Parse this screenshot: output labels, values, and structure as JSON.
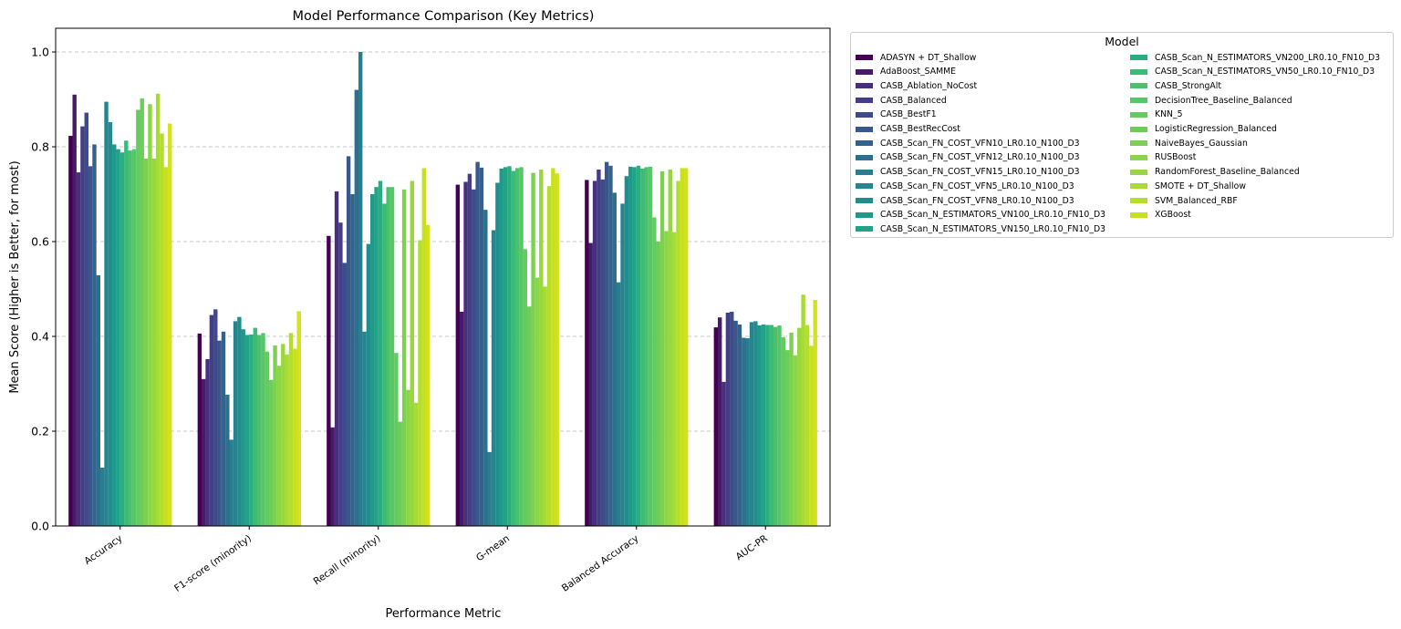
{
  "chart_data": {
    "type": "bar",
    "title": "Model Performance Comparison (Key Metrics)",
    "xlabel": "Performance Metric",
    "ylabel": "Mean Score (Higher is Better, for most)",
    "ylim": [
      0,
      1.05
    ],
    "yticks": [
      "0.0",
      "0.2",
      "0.4",
      "0.6",
      "0.8",
      "1.0"
    ],
    "grid": "y-dashed",
    "legend_title": "Model",
    "legend_placement": "outside-right",
    "categories": [
      "Accuracy",
      "F1-score (minority)",
      "Recall (minority)",
      "G-mean",
      "Balanced Accuracy",
      "AUC-PR"
    ],
    "series": [
      {
        "name": "ADASYN + DT_Shallow",
        "color": "#440154",
        "values": [
          0.823,
          0.406,
          0.612,
          0.72,
          0.73,
          0.419
        ]
      },
      {
        "name": "AdaBoost_SAMME",
        "color": "#461b67",
        "values": [
          0.91,
          0.31,
          0.208,
          0.452,
          0.597,
          0.44
        ]
      },
      {
        "name": "CASB_Ablation_NoCost",
        "color": "#472f7d",
        "values": [
          0.746,
          0.352,
          0.706,
          0.726,
          0.728,
          0.304
        ]
      },
      {
        "name": "CASB_Balanced",
        "color": "#433e85",
        "values": [
          0.843,
          0.445,
          0.64,
          0.743,
          0.752,
          0.45
        ]
      },
      {
        "name": "CASB_BestF1",
        "color": "#3e4a89",
        "values": [
          0.872,
          0.457,
          0.555,
          0.71,
          0.731,
          0.452
        ]
      },
      {
        "name": "CASB_BestRecCost",
        "color": "#38588c",
        "values": [
          0.759,
          0.391,
          0.78,
          0.768,
          0.768,
          0.433
        ]
      },
      {
        "name": "CASB_Scan_FN_COST_VFN10_LR0.10_N100_D3",
        "color": "#33638d",
        "values": [
          0.805,
          0.41,
          0.7,
          0.756,
          0.76,
          0.425
        ]
      },
      {
        "name": "CASB_Scan_FN_COST_VFN12_LR0.10_N100_D3",
        "color": "#2d708e",
        "values": [
          0.529,
          0.277,
          0.92,
          0.667,
          0.703,
          0.397
        ]
      },
      {
        "name": "CASB_Scan_FN_COST_VFN15_LR0.10_N100_D3",
        "color": "#287d8e",
        "values": [
          0.123,
          0.182,
          1.0,
          0.156,
          0.514,
          0.396
        ]
      },
      {
        "name": "CASB_Scan_FN_COST_VFN5_LR0.10_N100_D3",
        "color": "#25858e",
        "values": [
          0.895,
          0.432,
          0.41,
          0.624,
          0.68,
          0.43
        ]
      },
      {
        "name": "CASB_Scan_FN_COST_VFN8_LR0.10_N100_D3",
        "color": "#228d8d",
        "values": [
          0.852,
          0.441,
          0.595,
          0.724,
          0.738,
          0.432
        ]
      },
      {
        "name": "CASB_Scan_N_ESTIMATORS_VN100_LR0.10_FN10_D3",
        "color": "#1f998a",
        "values": [
          0.805,
          0.415,
          0.7,
          0.754,
          0.758,
          0.423
        ]
      },
      {
        "name": "CASB_Scan_N_ESTIMATORS_VN150_LR0.10_FN10_D3",
        "color": "#20a386",
        "values": [
          0.795,
          0.403,
          0.715,
          0.757,
          0.757,
          0.425
        ]
      },
      {
        "name": "CASB_Scan_N_ESTIMATORS_VN200_LR0.10_FN10_D3",
        "color": "#29af7f",
        "values": [
          0.788,
          0.404,
          0.728,
          0.759,
          0.76,
          0.424
        ]
      },
      {
        "name": "CASB_Scan_N_ESTIMATORS_VN50_LR0.10_FN10_D3",
        "color": "#3bbb75",
        "values": [
          0.813,
          0.418,
          0.68,
          0.749,
          0.754,
          0.424
        ]
      },
      {
        "name": "CASB_StrongAlt",
        "color": "#4ac26d",
        "values": [
          0.792,
          0.403,
          0.715,
          0.755,
          0.757,
          0.42
        ]
      },
      {
        "name": "DecisionTree_Baseline_Balanced",
        "color": "#56c667",
        "values": [
          0.795,
          0.407,
          0.715,
          0.757,
          0.758,
          0.423
        ]
      },
      {
        "name": "KNN_5",
        "color": "#63cb5f",
        "values": [
          0.878,
          0.368,
          0.365,
          0.584,
          0.651,
          0.398
        ]
      },
      {
        "name": "LogisticRegression_Balanced",
        "color": "#6dcd59",
        "values": [
          0.902,
          0.308,
          0.22,
          0.463,
          0.6,
          0.371
        ]
      },
      {
        "name": "NaiveBayes_Gaussian",
        "color": "#7cd250",
        "values": [
          0.775,
          0.381,
          0.71,
          0.745,
          0.748,
          0.408
        ]
      },
      {
        "name": "RUSBoost",
        "color": "#8bd646",
        "values": [
          0.89,
          0.338,
          0.287,
          0.524,
          0.622,
          0.36
        ]
      },
      {
        "name": "RandomForest_Baseline_Balanced",
        "color": "#98d83e",
        "values": [
          0.775,
          0.384,
          0.728,
          0.752,
          0.752,
          0.418
        ]
      },
      {
        "name": "SMOTE + DT_Shallow",
        "color": "#a8db34",
        "values": [
          0.912,
          0.362,
          0.26,
          0.505,
          0.62,
          0.488
        ]
      },
      {
        "name": "SVM_Balanced_RBF",
        "color": "#b5de2b",
        "values": [
          0.828,
          0.407,
          0.603,
          0.717,
          0.728,
          0.424
        ]
      },
      {
        "name": "XGBoost",
        "color": "#c8e020",
        "values": [
          0.757,
          0.374,
          0.755,
          0.755,
          0.755,
          0.38
        ]
      },
      {
        "name": "",
        "color": "#d2e21b",
        "values": [
          0.849,
          0.453,
          0.635,
          0.744,
          0.755,
          0.477
        ]
      }
    ]
  }
}
